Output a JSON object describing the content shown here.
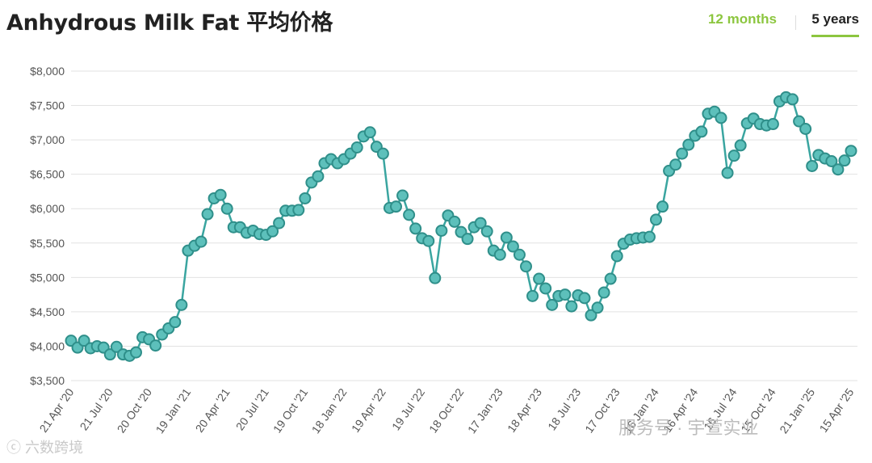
{
  "title": "Anhydrous Milk Fat 平均价格",
  "tabs": [
    {
      "label": "12 months",
      "active": false
    },
    {
      "label": "5 years",
      "active": true
    }
  ],
  "watermarks": {
    "left": "ⓒ 六数跨境",
    "right": "服务号 · 宇萱实业"
  },
  "colors": {
    "line": "#3aa5a0",
    "marker_fill": "#5dc0bb",
    "marker_stroke": "#2f8f8a",
    "accent": "#8cc63f",
    "grid": "#e2e2e2"
  },
  "chart_data": {
    "type": "line",
    "title": "Anhydrous Milk Fat 平均价格",
    "xlabel": "",
    "ylabel": "",
    "ylim": [
      3500,
      8000
    ],
    "yticks": [
      3500,
      4000,
      4500,
      5000,
      5500,
      6000,
      6500,
      7000,
      7500,
      8000
    ],
    "ytick_labels": [
      "$3,500",
      "$4,000",
      "$4,500",
      "$5,000",
      "$5,500",
      "$6,000",
      "$6,500",
      "$7,000",
      "$7,500",
      "$8,000"
    ],
    "xtick_labels": [
      "21 Apr '20",
      "21 Jul '20",
      "20 Oct '20",
      "19 Jan '21",
      "20 Apr '21",
      "20 Jul '21",
      "19 Oct '21",
      "18 Jan '22",
      "19 Apr '22",
      "19 Jul '22",
      "18 Oct '22",
      "17 Jan '23",
      "18 Apr '23",
      "18 Jul '23",
      "17 Oct '23",
      "16 Jan '24",
      "16 Apr '24",
      "16 Jul '24",
      "15 Oct '24",
      "21 Jan '25",
      "15 Apr '25"
    ],
    "xtick_index": [
      0,
      6,
      12,
      18,
      24,
      30,
      36,
      42,
      48,
      54,
      60,
      66,
      72,
      78,
      84,
      90,
      96,
      102,
      108,
      114,
      120
    ],
    "grid": true,
    "legend": "none",
    "series": [
      {
        "values": [
          4080,
          3980,
          4080,
          3970,
          4000,
          3980,
          3880,
          3990,
          3880,
          3860,
          3910,
          4130,
          4100,
          4010,
          4170,
          4260,
          4350,
          4600,
          5390,
          5460,
          5520,
          5920,
          6150,
          6200,
          6000,
          5730,
          5730,
          5650,
          5680,
          5630,
          5620,
          5670,
          5790,
          5970,
          5970,
          5980,
          6150,
          6380,
          6470,
          6660,
          6720,
          6660,
          6720,
          6800,
          6890,
          7050,
          7110,
          6900,
          6800,
          6010,
          6030,
          6190,
          5910,
          5710,
          5570,
          5530,
          4990,
          5680,
          5900,
          5810,
          5660,
          5560,
          5730,
          5790,
          5670,
          5390,
          5330,
          5580,
          5450,
          5330,
          5160,
          4730,
          4980,
          4840,
          4600,
          4730,
          4750,
          4580,
          4740,
          4700,
          4450,
          4560,
          4780,
          4980,
          5310,
          5490,
          5550,
          5570,
          5580,
          5590,
          5840,
          6030,
          6550,
          6640,
          6800,
          6930,
          7060,
          7120,
          7380,
          7410,
          7320,
          6520,
          6770,
          6920,
          7240,
          7310,
          7230,
          7210,
          7230,
          7560,
          7620,
          7590,
          7270,
          7160,
          6620,
          6780,
          6730,
          6690,
          6570,
          6700,
          6840
        ]
      }
    ]
  }
}
